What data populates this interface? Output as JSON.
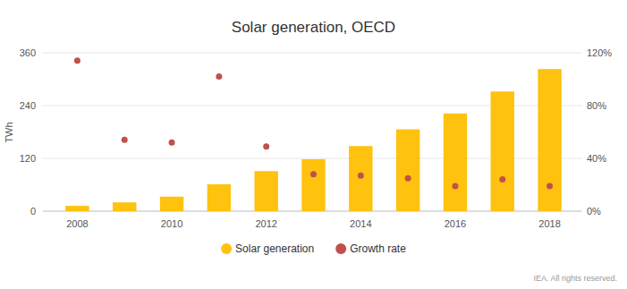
{
  "chart_data": {
    "type": "bar",
    "title": "Solar generation, OECD",
    "ylabel": "TWh",
    "source": "IEA. All rights reserved.",
    "categories": [
      "2008",
      null,
      "2010",
      null,
      "2012",
      null,
      "2014",
      null,
      "2016",
      null,
      "2018"
    ],
    "series": [
      {
        "name": "Solar generation",
        "type": "bar",
        "color": "#ffc20e",
        "values": [
          12,
          20,
          33,
          61,
          91,
          118,
          148,
          186,
          222,
          272,
          323
        ]
      },
      {
        "name": "Growth rate",
        "type": "scatter",
        "marker": "circle",
        "color": "#c0504d",
        "axis": "y2",
        "values": [
          114,
          54,
          52,
          102,
          49,
          28,
          27,
          25,
          19,
          24,
          19
        ]
      }
    ],
    "ylim": [
      0,
      360
    ],
    "yticks": [
      0,
      120,
      240,
      360
    ],
    "y2lim": [
      0,
      120
    ],
    "y2ticks": [
      {
        "value": 0,
        "label": "0%"
      },
      {
        "value": 40,
        "label": "40%"
      },
      {
        "value": 80,
        "label": "80%"
      },
      {
        "value": 120,
        "label": "120%"
      }
    ],
    "grid": true,
    "legend": "bottom"
  }
}
